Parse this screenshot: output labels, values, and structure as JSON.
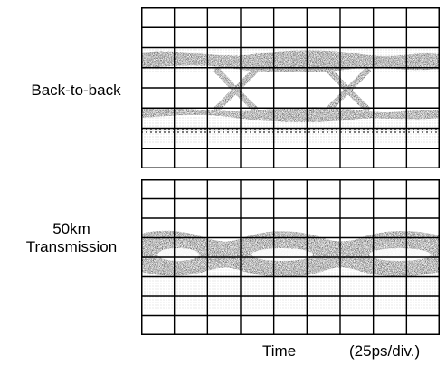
{
  "panels": [
    {
      "label_lines": [
        "Back-to-back"
      ]
    },
    {
      "label_lines": [
        "50km",
        "Transmission"
      ]
    }
  ],
  "footer": {
    "xlabel": "Time",
    "scale": "(25ps/div.)"
  },
  "screen": {
    "divisions_x": 9,
    "divisions_y": 8,
    "trace_color": "#111111",
    "grid_color": "#000000"
  }
}
